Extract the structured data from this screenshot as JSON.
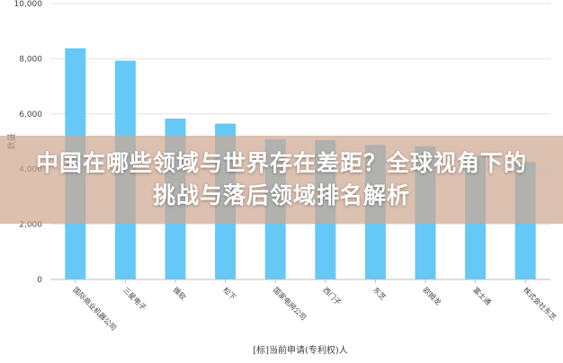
{
  "overlay_title": "中国在哪些领域与世界存在差距？全球视角下的挑战与落后领域排名解析",
  "colors": {
    "bar": "#66c8f7",
    "grid": "#e3e3e3",
    "axis_text": "#444444",
    "banner_bg": "rgba(206,168,146,0.72)"
  },
  "chart_data": {
    "type": "bar",
    "xlabel": "[标]当前申请(专利权)人",
    "ylabel": "数量",
    "ylim": [
      0,
      10000
    ],
    "yticks": [
      0,
      2000,
      4000,
      6000,
      8000,
      10000
    ],
    "ytick_labels": [
      "0",
      "2,000",
      "4,000",
      "6,000",
      "8,000",
      "10,000"
    ],
    "grid": true,
    "categories": [
      "国际商业机器公司",
      "三星电子",
      "微软",
      "松下",
      "国家电网公司",
      "西门子",
      "东芝",
      "欧姆龙",
      "富士通",
      "株式会社东芝"
    ],
    "values": [
      8380,
      7930,
      5830,
      5650,
      5080,
      5050,
      4880,
      4830,
      4480,
      4250
    ]
  }
}
